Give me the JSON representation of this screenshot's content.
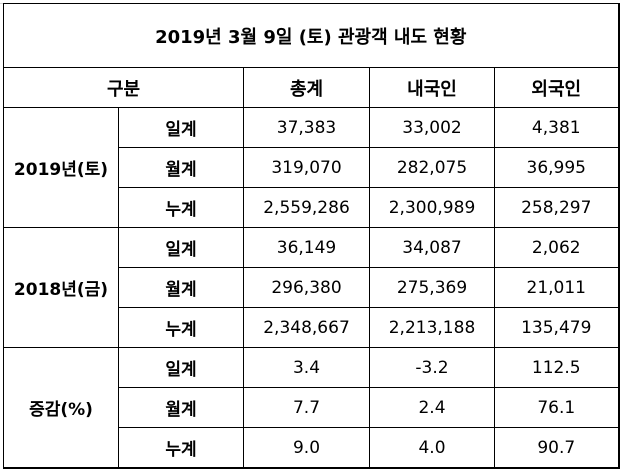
{
  "title": "2019년 3월 9일 (토) 관광객 내도 현황",
  "headers": [
    "구분",
    "총계",
    "내국인",
    "외국인"
  ],
  "groups": [
    {
      "label": "2019년(토)",
      "rows": [
        {
          "label": "일계",
          "values": [
            "37,383",
            "33,002",
            "4,381"
          ]
        },
        {
          "label": "월계",
          "values": [
            "319,070",
            "282,075",
            "36,995"
          ]
        },
        {
          "label": "누계",
          "values": [
            "2,559,286",
            "2,300,989",
            "258,297"
          ]
        }
      ]
    },
    {
      "label": "2018년(금)",
      "rows": [
        {
          "label": "일계",
          "values": [
            "36,149",
            "34,087",
            "2,062"
          ]
        },
        {
          "label": "월계",
          "values": [
            "296,380",
            "275,369",
            "21,011"
          ]
        },
        {
          "label": "누계",
          "values": [
            "2,348,667",
            "2,213,188",
            "135,479"
          ]
        }
      ]
    },
    {
      "label": "증감(%)",
      "rows": [
        {
          "label": "일계",
          "values": [
            "3.4",
            "-3.2",
            "112.5"
          ]
        },
        {
          "label": "월계",
          "values": [
            "7.7",
            "2.4",
            "76.1"
          ]
        },
        {
          "label": "누계",
          "values": [
            "9.0",
            "4.0",
            "90.7"
          ]
        }
      ]
    }
  ]
}
